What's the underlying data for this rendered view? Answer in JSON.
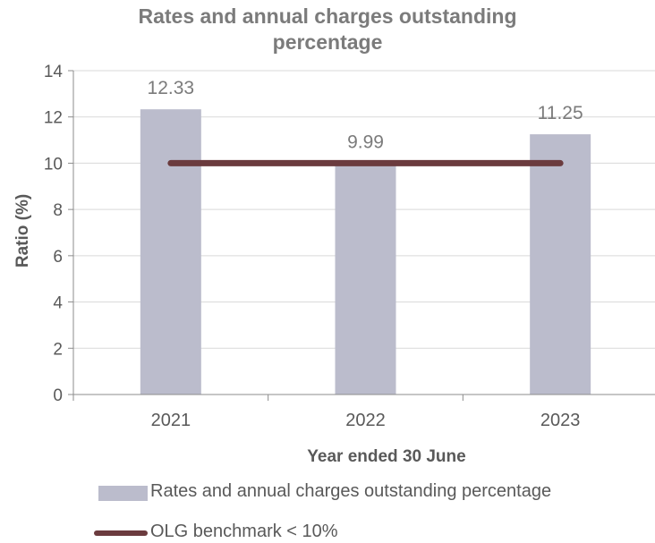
{
  "chart_data": {
    "type": "bar",
    "title_lines": [
      "Rates and annual charges outstanding",
      "percentage"
    ],
    "xlabel": "Year ended 30 June",
    "ylabel": "Ratio (%)",
    "categories": [
      "2021",
      "2022",
      "2023"
    ],
    "ylim": [
      0,
      14
    ],
    "yticks": [
      "0",
      "2",
      "4",
      "6",
      "8",
      "10",
      "12",
      "14"
    ],
    "grid": true,
    "series": [
      {
        "name": "Rates and annual charges outstanding percentage",
        "type": "bar",
        "values": [
          12.33,
          9.99,
          11.25
        ],
        "labels": [
          "12.33",
          "9.99",
          "11.25"
        ],
        "color": "#bbbccc"
      },
      {
        "name": "OLG benchmark < 10%",
        "type": "line",
        "values": [
          10,
          10,
          10
        ],
        "color": "#6b3b3e"
      }
    ],
    "legend_position": "bottom"
  }
}
